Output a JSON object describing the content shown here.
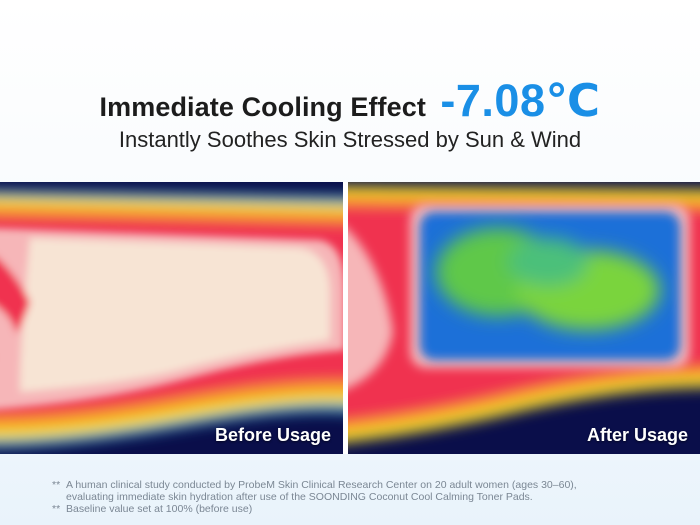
{
  "header": {
    "title": "Immediate Cooling Effect",
    "temperature": "-7.08℃",
    "subtitle": "Instantly Soothes Skin Stressed by Sun & Wind"
  },
  "panels": {
    "before_label": "Before Usage",
    "after_label": "After Usage"
  },
  "footnotes": {
    "note1_marker": "**",
    "note1_line1": "A human clinical study conducted by ProbeM Skin Clinical Research Center on 20 adult women (ages 30–60),",
    "note1_line2": "evaluating immediate skin hydration after use of the SOONDING Coconut Cool Calming Toner Pads.",
    "note2_marker": "**",
    "note2_text": "Baseline value set at 100% (before use)"
  },
  "colors": {
    "accent": "#1a8fe6",
    "thermal_background": "#0a0e4a",
    "hot": "#f7e4d4",
    "warm_red": "#f03050",
    "cool_blue": "#1e6fd8",
    "cool_green": "#5ec84a"
  }
}
